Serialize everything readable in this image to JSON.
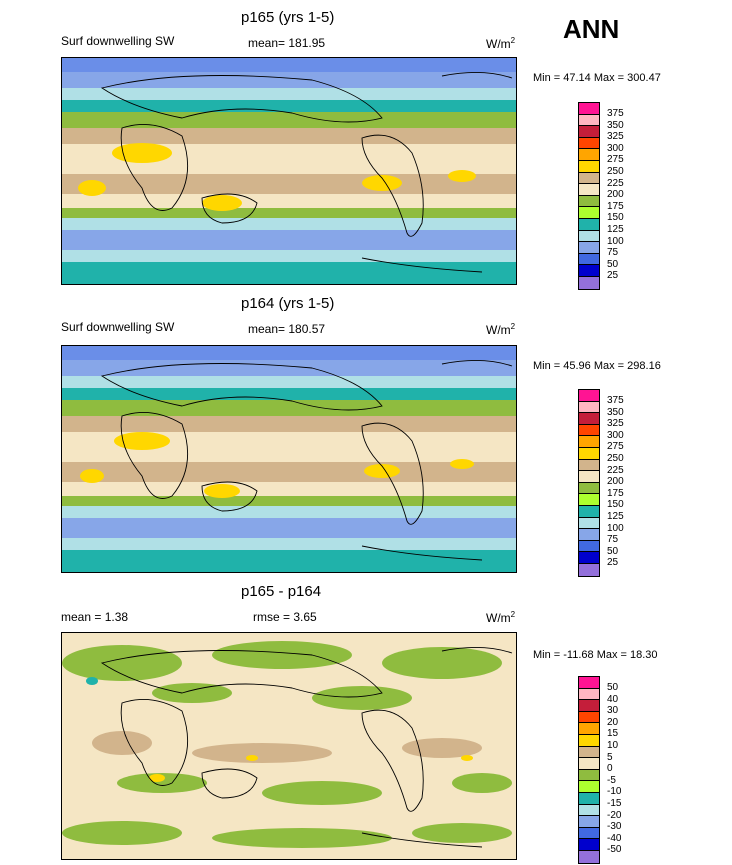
{
  "season": "ANN",
  "panels": [
    {
      "title": "p165 (yrs 1-5)",
      "left_label": "Surf downwelling SW",
      "mid_label": "mean= 181.95",
      "units_base": "W/m",
      "units_exp": "2",
      "minmax": "Min =  47.14 Max = 300.47",
      "colorbar": {
        "labels": [
          "375",
          "350",
          "325",
          "300",
          "275",
          "250",
          "225",
          "200",
          "175",
          "150",
          "125",
          "100",
          "75",
          "50",
          "25"
        ],
        "colors": [
          "#ff1493",
          "#ffb6c1",
          "#c41e3a",
          "#ff4500",
          "#ffa500",
          "#ffd700",
          "#d2b48c",
          "#f5e6c4",
          "#8fbc3f",
          "#adff2f",
          "#20b2aa",
          "#b0e0e6",
          "#87a6e8",
          "#4169e1",
          "#0000cd",
          "#9370db"
        ]
      }
    },
    {
      "title": "p164 (yrs 1-5)",
      "left_label": "Surf downwelling SW",
      "mid_label": "mean= 180.57",
      "units_base": "W/m",
      "units_exp": "2",
      "minmax": "Min =  45.96 Max = 298.16",
      "colorbar": {
        "labels": [
          "375",
          "350",
          "325",
          "300",
          "275",
          "250",
          "225",
          "200",
          "175",
          "150",
          "125",
          "100",
          "75",
          "50",
          "25"
        ],
        "colors": [
          "#ff1493",
          "#ffb6c1",
          "#c41e3a",
          "#ff4500",
          "#ffa500",
          "#ffd700",
          "#d2b48c",
          "#f5e6c4",
          "#8fbc3f",
          "#adff2f",
          "#20b2aa",
          "#b0e0e6",
          "#87a6e8",
          "#4169e1",
          "#0000cd",
          "#9370db"
        ]
      }
    },
    {
      "title": "p165 - p164",
      "left_label": "mean =   1.38",
      "mid_label": "rmse =   3.65",
      "units_base": "W/m",
      "units_exp": "2",
      "minmax": "Min = -11.68 Max =  18.30",
      "colorbar": {
        "labels": [
          "50",
          "40",
          "30",
          "20",
          "15",
          "10",
          "5",
          "0",
          "-5",
          "-10",
          "-15",
          "-20",
          "-30",
          "-40",
          "-50"
        ],
        "colors": [
          "#ff1493",
          "#ffb6c1",
          "#c41e3a",
          "#ff4500",
          "#ffa500",
          "#ffd700",
          "#d2b48c",
          "#f5e6c4",
          "#8fbc3f",
          "#adff2f",
          "#20b2aa",
          "#b0e0e6",
          "#87a6e8",
          "#4169e1",
          "#0000cd",
          "#9370db"
        ]
      }
    }
  ]
}
